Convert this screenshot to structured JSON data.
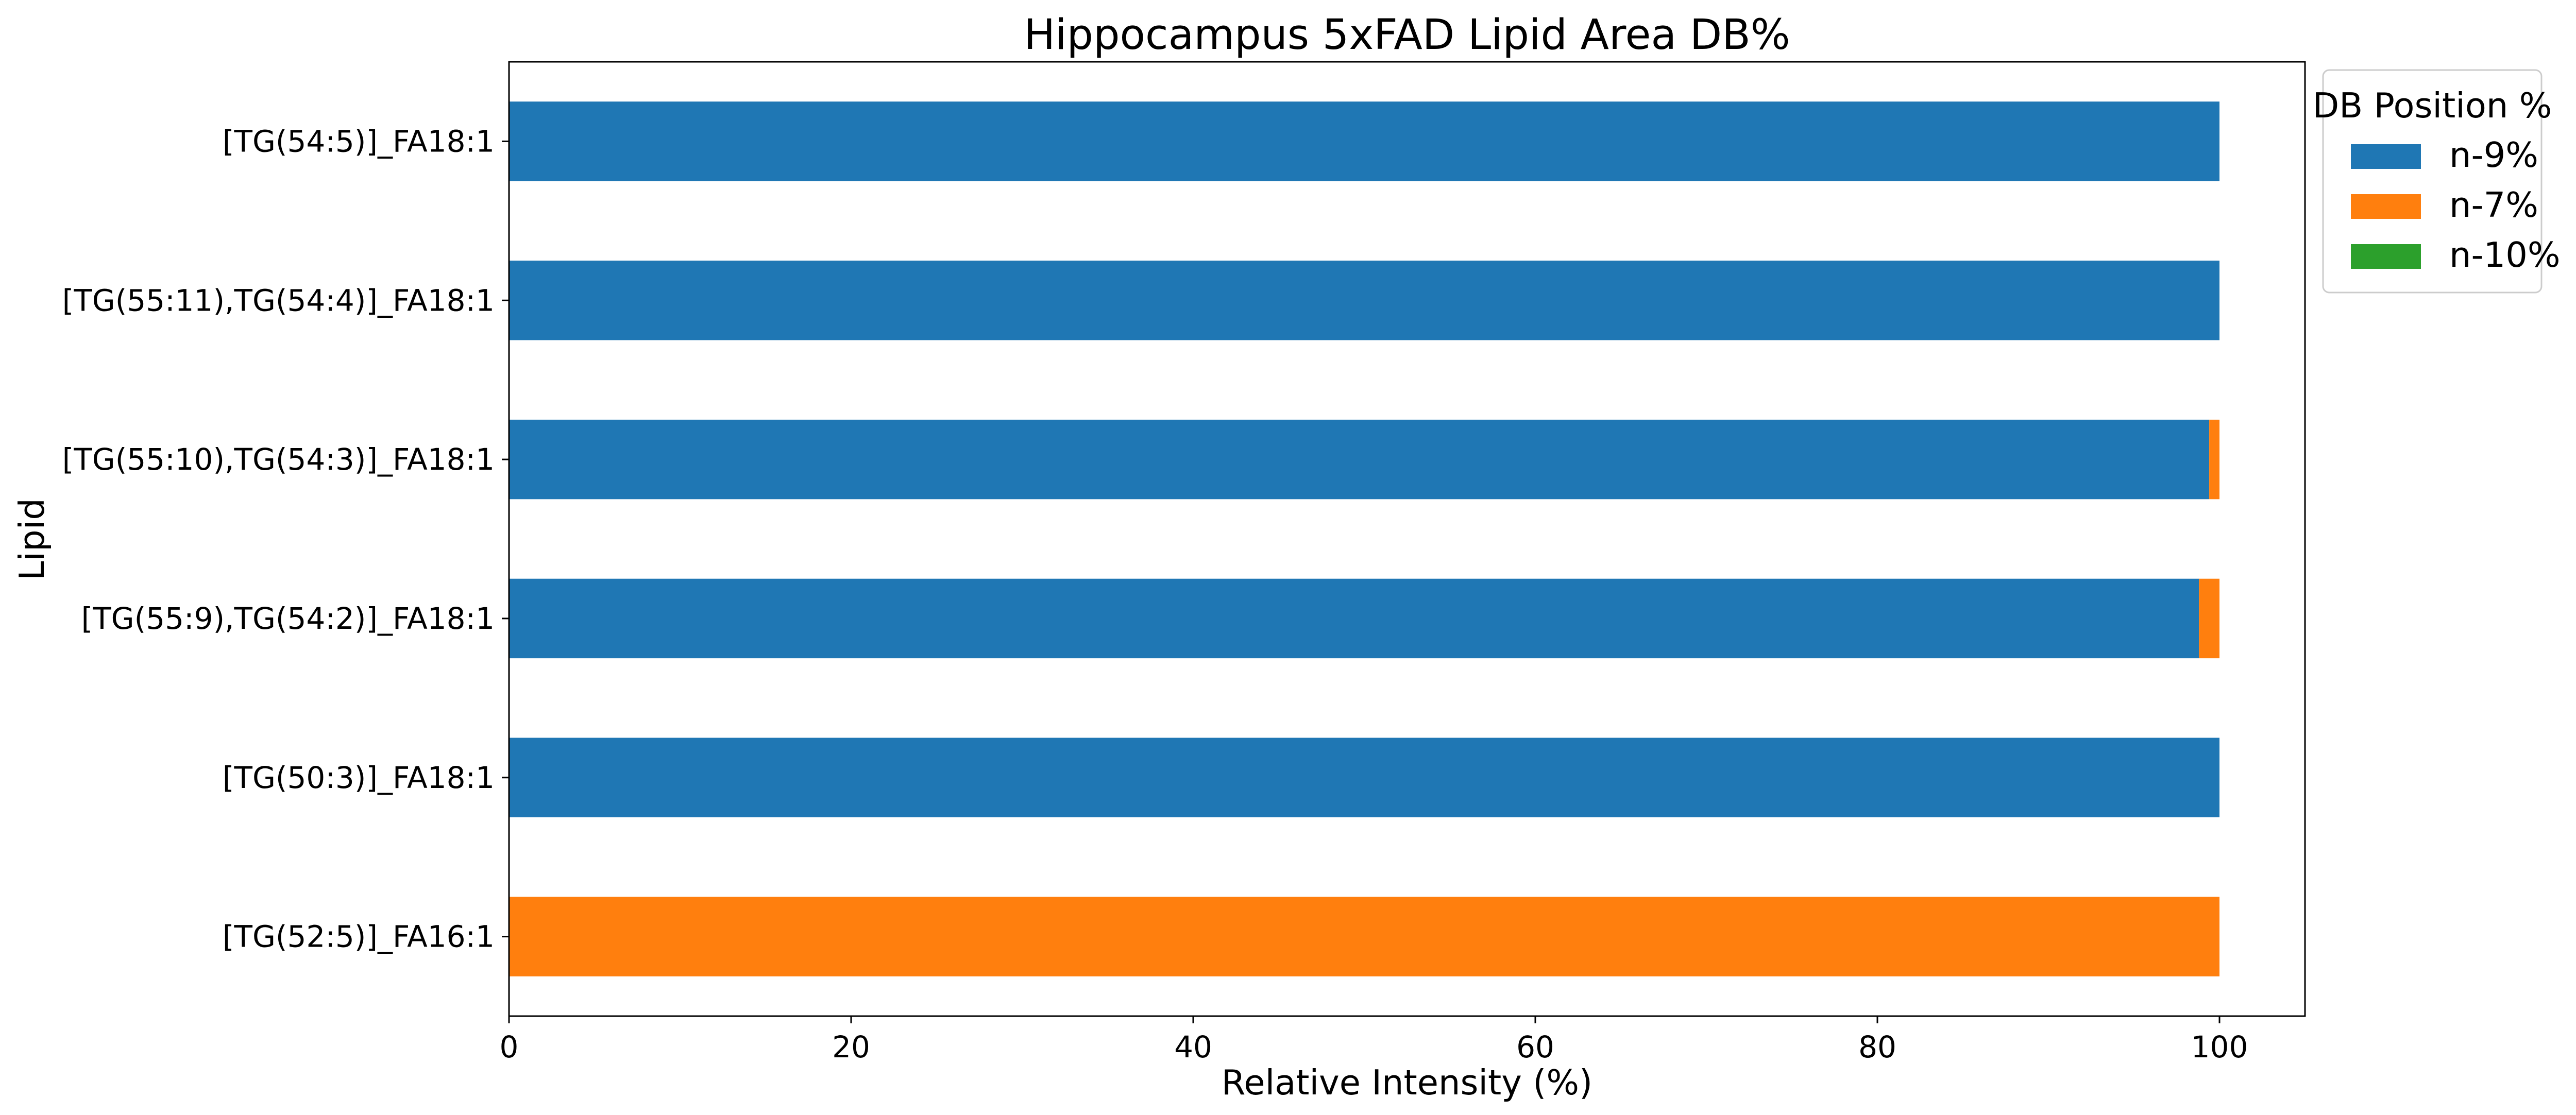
{
  "chart_data": {
    "type": "bar",
    "orientation": "horizontal",
    "stacked": true,
    "title": "Hippocampus 5xFAD Lipid Area DB%",
    "xlabel": "Relative Intensity (%)",
    "ylabel": "Lipid",
    "xlim": [
      0,
      105
    ],
    "xticks": [
      0,
      20,
      40,
      60,
      80,
      100
    ],
    "grid": false,
    "legend": {
      "title": "DB Position %",
      "placement": "outside-top-right"
    },
    "categories": [
      "[TG(52:5)]_FA16:1",
      "[TG(50:3)]_FA18:1",
      "[TG(55:9),TG(54:2)]_FA18:1",
      "[TG(55:10),TG(54:3)]_FA18:1",
      "[TG(55:11),TG(54:4)]_FA18:1",
      "[TG(54:5)]_FA18:1"
    ],
    "series": [
      {
        "name": "n-9%",
        "color": "#1f77b4",
        "values": [
          0,
          100,
          98.8,
          99.4,
          100,
          100
        ]
      },
      {
        "name": "n-7%",
        "color": "#ff7f0e",
        "values": [
          100,
          0,
          1.2,
          0.6,
          0,
          0
        ]
      },
      {
        "name": "n-10%",
        "color": "#2ca02c",
        "values": [
          0,
          0,
          0,
          0,
          0,
          0
        ]
      }
    ]
  }
}
